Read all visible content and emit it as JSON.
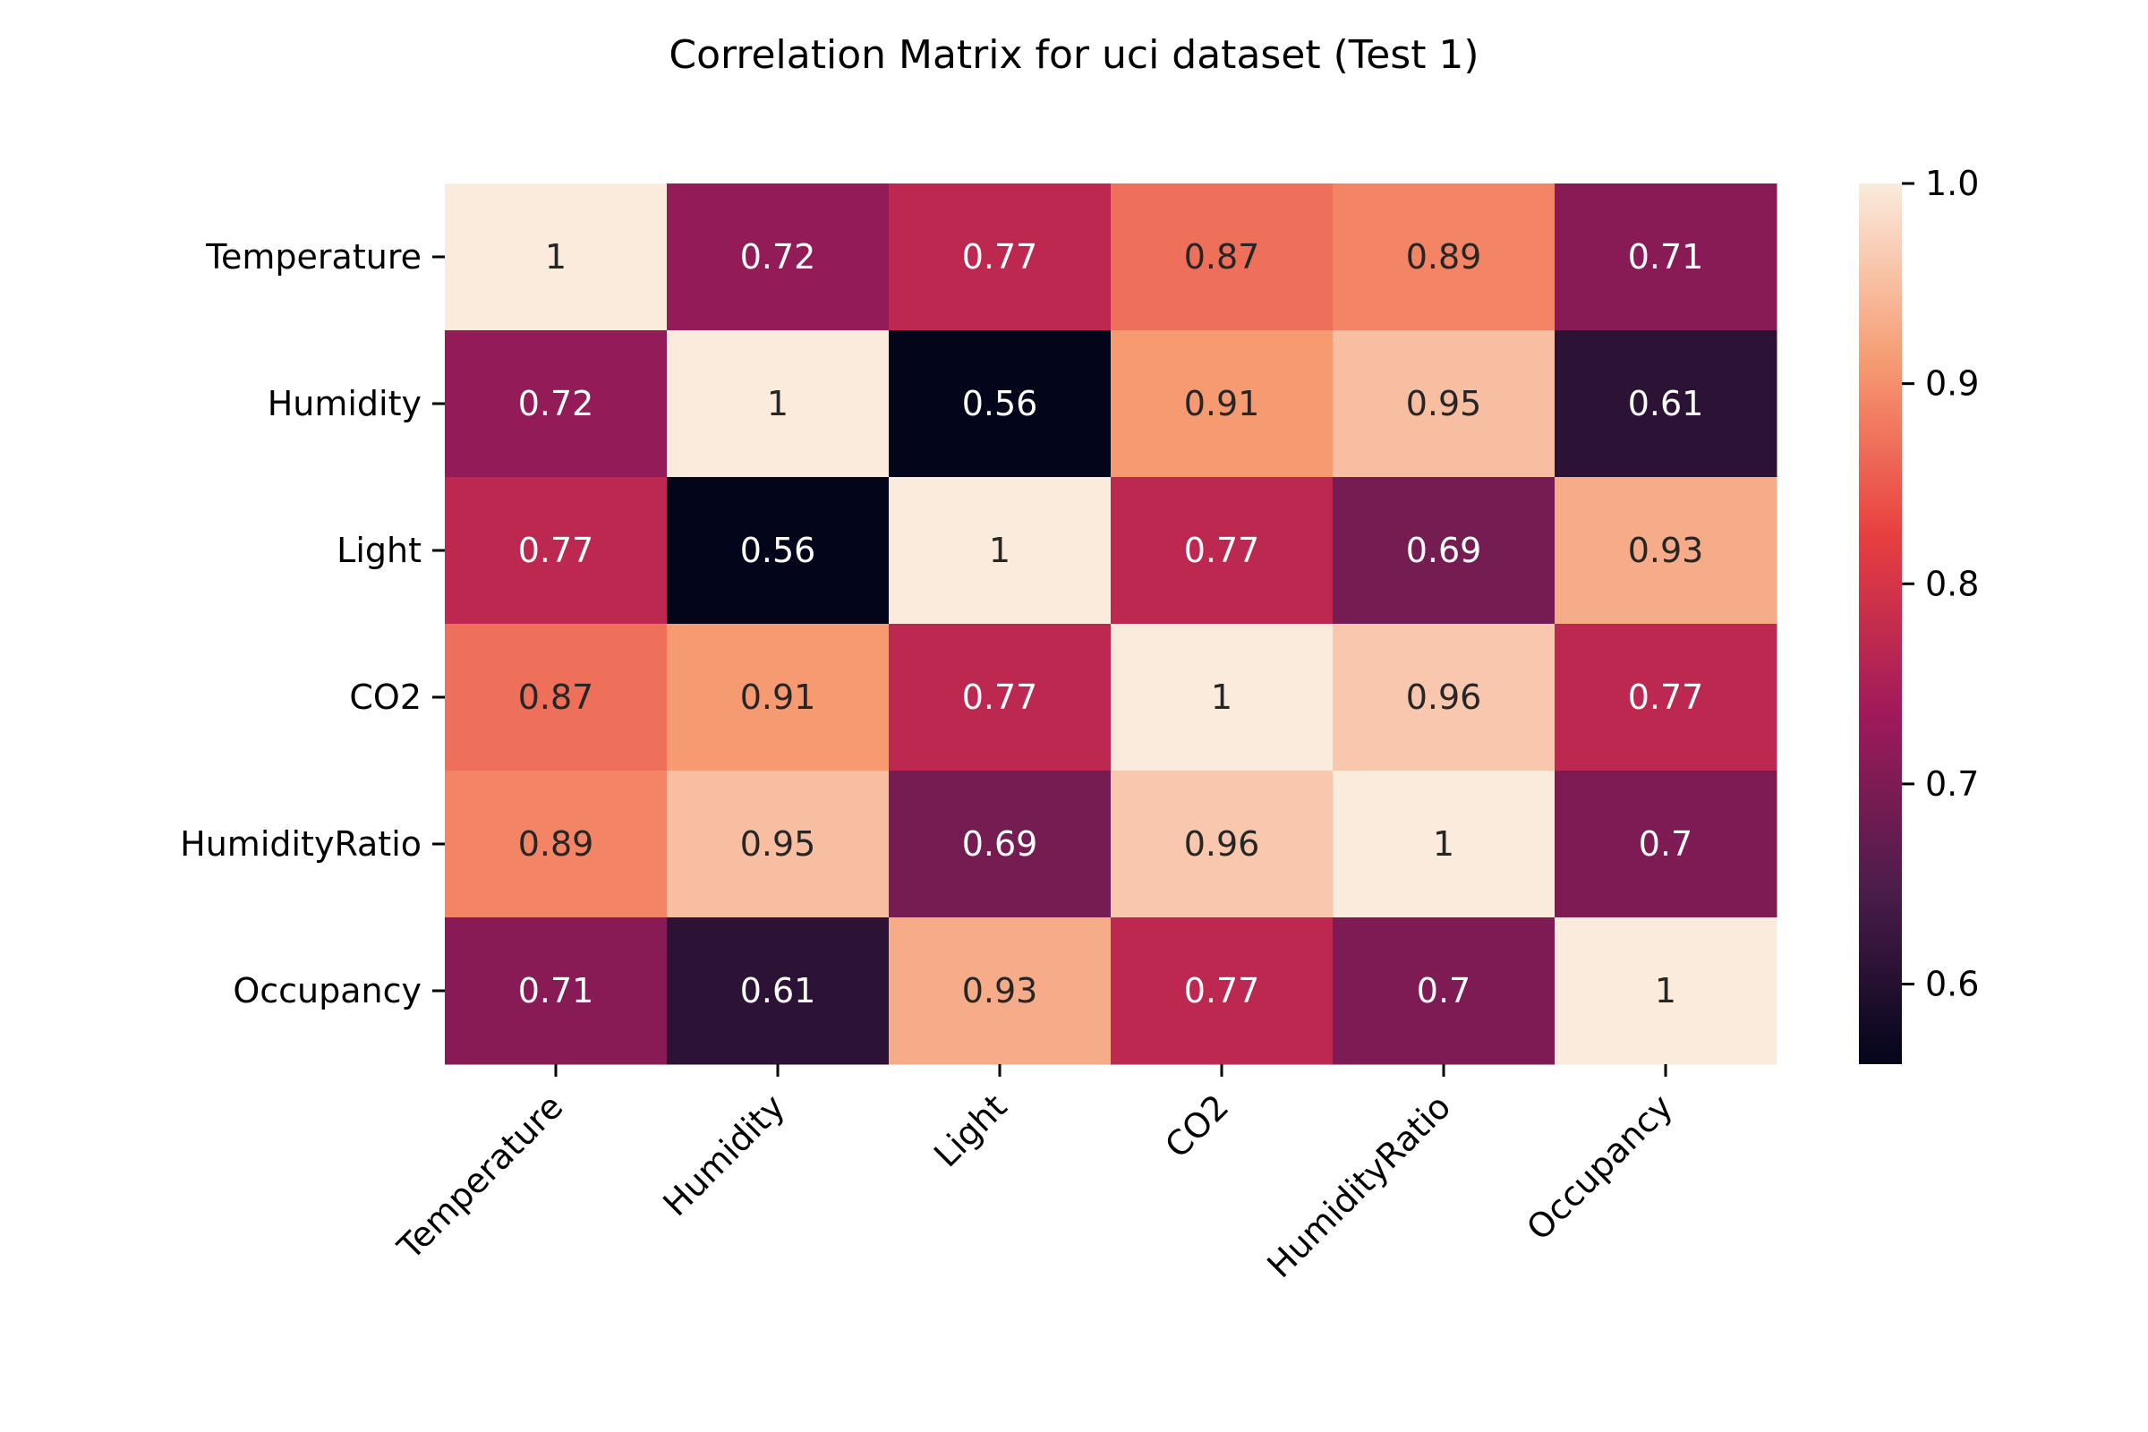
{
  "chart_data": {
    "type": "heatmap",
    "title": "Correlation Matrix for uci dataset (Test 1)",
    "xlabel": "",
    "ylabel": "",
    "rows": [
      "Temperature",
      "Humidity",
      "Light",
      "CO2",
      "HumidityRatio",
      "Occupancy"
    ],
    "columns": [
      "Temperature",
      "Humidity",
      "Light",
      "CO2",
      "HumidityRatio",
      "Occupancy"
    ],
    "values": [
      [
        1,
        0.72,
        0.77,
        0.87,
        0.89,
        0.71
      ],
      [
        0.72,
        1,
        0.56,
        0.91,
        0.95,
        0.61
      ],
      [
        0.77,
        0.56,
        1,
        0.77,
        0.69,
        0.93
      ],
      [
        0.87,
        0.91,
        0.77,
        1,
        0.96,
        0.77
      ],
      [
        0.89,
        0.95,
        0.69,
        0.96,
        1,
        0.7
      ],
      [
        0.71,
        0.61,
        0.93,
        0.77,
        0.7,
        1
      ]
    ],
    "value_labels": [
      [
        "1",
        "0.72",
        "0.77",
        "0.87",
        "0.89",
        "0.71"
      ],
      [
        "0.72",
        "1",
        "0.56",
        "0.91",
        "0.95",
        "0.61"
      ],
      [
        "0.77",
        "0.56",
        "1",
        "0.77",
        "0.69",
        "0.93"
      ],
      [
        "0.87",
        "0.91",
        "0.77",
        "1",
        "0.96",
        "0.77"
      ],
      [
        "0.89",
        "0.95",
        "0.69",
        "0.96",
        "1",
        "0.7"
      ],
      [
        "0.71",
        "0.61",
        "0.93",
        "0.77",
        "0.7",
        "1"
      ]
    ],
    "colorbar": {
      "range": [
        0.56,
        1.0
      ],
      "ticks": [
        0.6,
        0.7,
        0.8,
        0.9,
        1.0
      ],
      "tick_labels": [
        "0.6",
        "0.7",
        "0.8",
        "0.9",
        "1.0"
      ],
      "colormap": "rocket",
      "colors": [
        "#03051a",
        "#4c1d4b",
        "#a11a5b",
        "#e83f3f",
        "#f69c73",
        "#faebdd"
      ]
    },
    "annotation_colors": {
      "dark": "#262626",
      "light": "#ffffff"
    },
    "grid": false
  }
}
